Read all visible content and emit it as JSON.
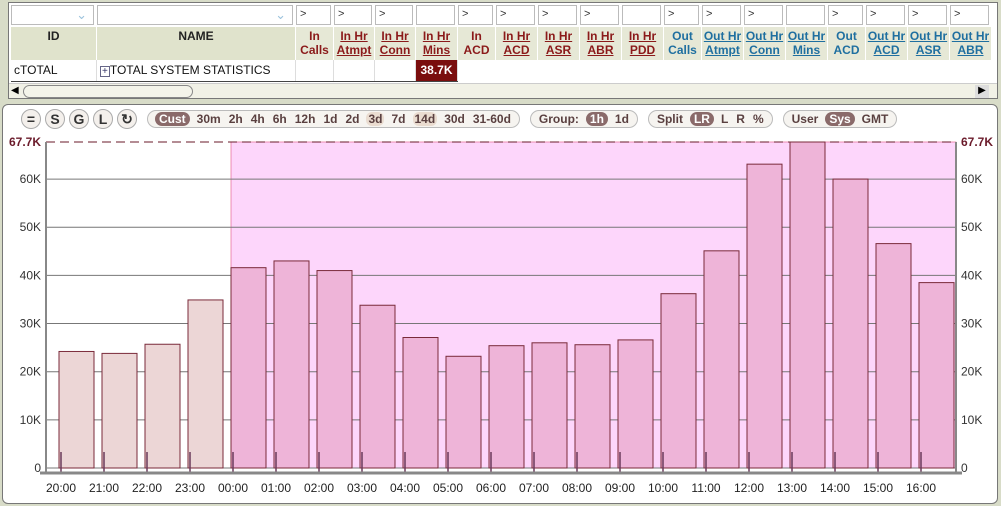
{
  "grid": {
    "filters": [
      "",
      "",
      ">",
      ">",
      ">",
      "",
      ">",
      ">",
      ">",
      ">",
      "",
      ">",
      ">",
      ">",
      "",
      ">",
      ">",
      ">",
      ">"
    ],
    "columns": [
      {
        "label": "ID",
        "kind": "id",
        "w": 86
      },
      {
        "label": "NAME",
        "kind": "id",
        "w": 199
      },
      {
        "label": "In Calls",
        "kind": "in",
        "u": false,
        "w": 38
      },
      {
        "label": "In Hr Atmpt",
        "kind": "in",
        "u": true,
        "w": 41
      },
      {
        "label": "In Hr Conn",
        "kind": "in",
        "u": true,
        "w": 41
      },
      {
        "label": "In Hr Mins",
        "kind": "in",
        "u": true,
        "w": 42
      },
      {
        "label": "In ACD",
        "kind": "in",
        "u": false,
        "w": 38
      },
      {
        "label": "In Hr ACD",
        "kind": "in",
        "u": true,
        "w": 42
      },
      {
        "label": "In Hr ASR",
        "kind": "in",
        "u": true,
        "w": 42
      },
      {
        "label": "In Hr ABR",
        "kind": "in",
        "u": true,
        "w": 42
      },
      {
        "label": "In Hr PDD",
        "kind": "in",
        "u": true,
        "w": 42
      },
      {
        "label": "Out Calls",
        "kind": "out",
        "u": false,
        "w": 38
      },
      {
        "label": "Out Hr Atmpt",
        "kind": "out",
        "u": true,
        "w": 42
      },
      {
        "label": "Out Hr Conn",
        "kind": "out",
        "u": true,
        "w": 42
      },
      {
        "label": "Out Hr Mins",
        "kind": "out",
        "u": true,
        "w": 42
      },
      {
        "label": "Out ACD",
        "kind": "out",
        "u": false,
        "w": 38
      },
      {
        "label": "Out Hr ACD",
        "kind": "out",
        "u": true,
        "w": 42
      },
      {
        "label": "Out Hr ASR",
        "kind": "out",
        "u": true,
        "w": 42
      },
      {
        "label": "Out Hr ABR",
        "kind": "out",
        "u": true,
        "w": 42
      }
    ],
    "row": {
      "id": "cTOTAL",
      "expand_icon": "plus-box-icon",
      "name": "TOTAL SYSTEM STATISTICS",
      "in_hr_mins": "38.7K"
    }
  },
  "toolbar": {
    "round_buttons": [
      "=",
      "S",
      "G",
      "L",
      "↻"
    ],
    "ranges": [
      {
        "l": "Cust",
        "s": "sel"
      },
      {
        "l": "30m"
      },
      {
        "l": "2h"
      },
      {
        "l": "4h"
      },
      {
        "l": "6h"
      },
      {
        "l": "12h"
      },
      {
        "l": "1d"
      },
      {
        "l": "2d"
      },
      {
        "l": "3d",
        "s": "soft"
      },
      {
        "l": "7d"
      },
      {
        "l": "14d",
        "s": "soft"
      },
      {
        "l": "30d"
      },
      {
        "l": "31-60d"
      }
    ],
    "group": [
      {
        "l": "Group:"
      },
      {
        "l": "1h",
        "s": "sel"
      },
      {
        "l": "1d"
      }
    ],
    "split": [
      {
        "l": "Split"
      },
      {
        "l": "LR",
        "s": "sel"
      },
      {
        "l": "L"
      },
      {
        "l": "R"
      },
      {
        "l": "%"
      }
    ],
    "tz": [
      {
        "l": "User"
      },
      {
        "l": "Sys",
        "s": "sel"
      },
      {
        "l": "GMT"
      }
    ]
  },
  "colors": {
    "bar_past": "#ecd6d6",
    "bar_current": "#eeb4d8",
    "highlight_region": "#fdd6fb",
    "bar_border": "#7a2a3a",
    "max_line": "#6a1a2a"
  },
  "chart_data": {
    "type": "bar",
    "categories": [
      "20:00",
      "21:00",
      "22:00",
      "23:00",
      "00:00",
      "01:00",
      "02:00",
      "03:00",
      "04:00",
      "05:00",
      "06:00",
      "07:00",
      "08:00",
      "09:00",
      "10:00",
      "11:00",
      "12:00",
      "13:00",
      "14:00",
      "15:00",
      "16:00"
    ],
    "values": [
      24200,
      23800,
      25700,
      34900,
      41600,
      43000,
      41000,
      33800,
      27100,
      23200,
      25400,
      26000,
      25600,
      26600,
      36200,
      45100,
      63100,
      67700,
      60000,
      46600,
      38500
    ],
    "highlight_from": "00:00",
    "yticks": [
      "0",
      "10K",
      "20K",
      "30K",
      "40K",
      "50K",
      "60K"
    ],
    "ytick_values": [
      0,
      10000,
      20000,
      30000,
      40000,
      50000,
      60000
    ],
    "max_label": "67.7K",
    "max_value": 67700,
    "ylim": [
      0,
      67700
    ],
    "grid": true
  }
}
